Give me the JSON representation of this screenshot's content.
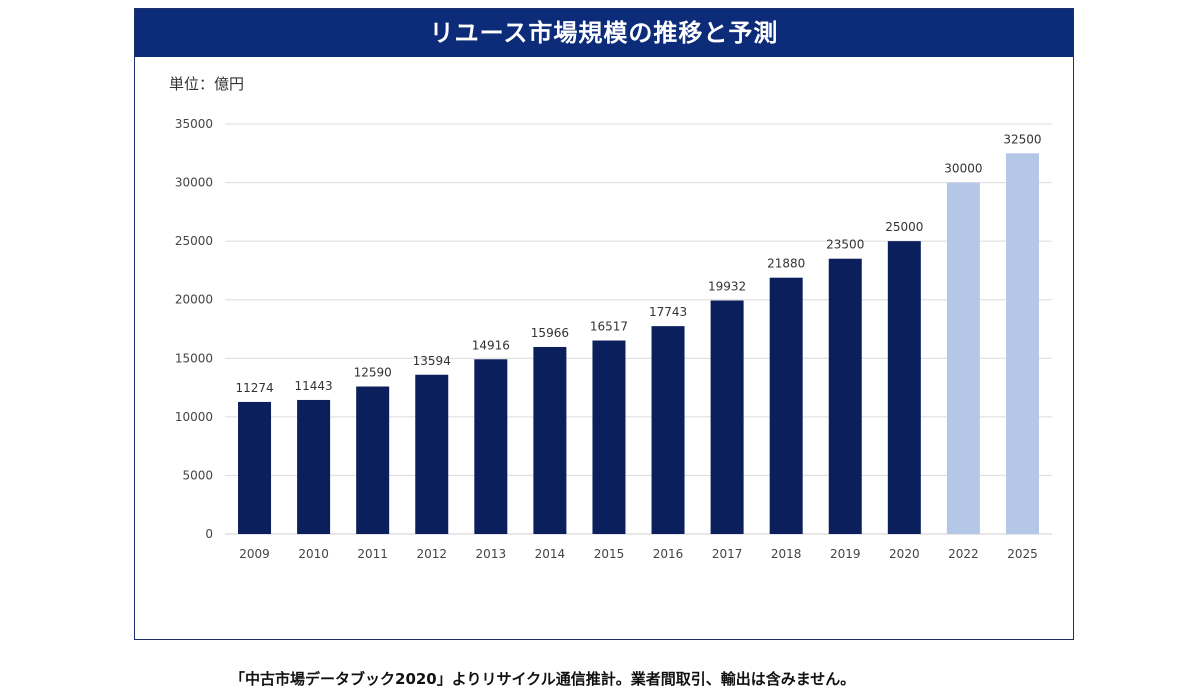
{
  "chart_data": {
    "type": "bar",
    "title": "リユース市場規模の推移と予測",
    "unit": "単位：億円",
    "categories": [
      "2009",
      "2010",
      "2011",
      "2012",
      "2013",
      "2014",
      "2015",
      "2016",
      "2017",
      "2018",
      "2019",
      "2020",
      "2022",
      "2025"
    ],
    "values": [
      11274,
      11443,
      12590,
      13594,
      14916,
      15966,
      16517,
      17743,
      19932,
      21880,
      23500,
      25000,
      30000,
      32500
    ],
    "forecast_from_index": 12,
    "ylim": [
      0,
      35000
    ],
    "yticks": [
      0,
      5000,
      10000,
      15000,
      20000,
      25000,
      30000,
      35000
    ],
    "grid": true,
    "colors": {
      "actual": "#0a1f5c",
      "forecast": "#b4c7e7",
      "title_bar": "#0c2c7a"
    }
  },
  "footnote": "「中古市場データブック2020」よりリサイクル通信推計。業者間取引、輸出は含みません。"
}
